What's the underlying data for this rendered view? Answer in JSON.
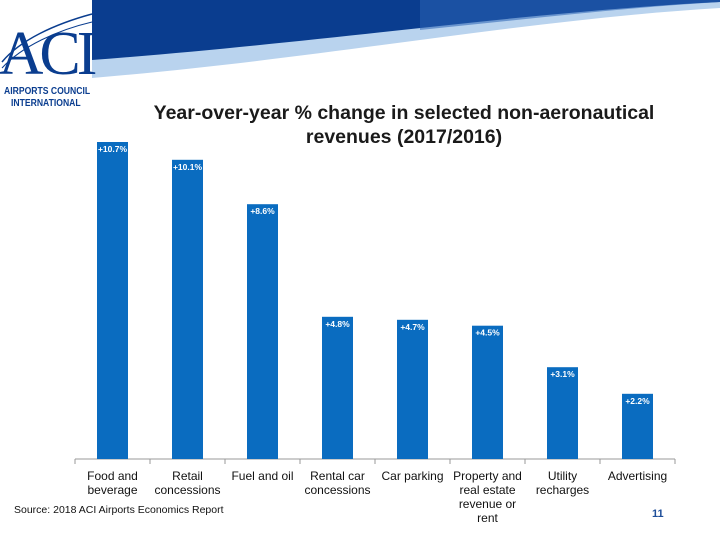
{
  "slide": {
    "title": "Year-over-year % change in selected non-aeronautical revenues (2017/2016)",
    "source": "Source: 2018 ACI Airports Economics Report",
    "page_number": "11"
  },
  "logo": {
    "mark": "ACI",
    "line1": "AIRPORTS COUNCIL",
    "line2": "INTERNATIONAL"
  },
  "colors": {
    "bar": "#0a6cc0",
    "brand_dark": "#0a3d8f",
    "brand_light": "#9cc3e8"
  },
  "chart_data": {
    "type": "bar",
    "title": "Year-over-year % change in selected non-aeronautical revenues (2017/2016)",
    "categories": [
      "Food and beverage",
      "Retail concessions",
      "Fuel and oil",
      "Rental car concessions",
      "Car parking",
      "Property and real estate revenue or rent",
      "Utility recharges",
      "Advertising"
    ],
    "values": [
      10.7,
      10.1,
      8.6,
      4.8,
      4.7,
      4.5,
      3.1,
      2.2
    ],
    "data_labels": [
      "+10.7%",
      "+10.1%",
      "+8.6%",
      "+4.8%",
      "+4.7%",
      "+4.5%",
      "+3.1%",
      "+2.2%"
    ],
    "category_label_lines": [
      [
        "Food and",
        "beverage"
      ],
      [
        "Retail",
        "concessions"
      ],
      [
        "Fuel and oil"
      ],
      [
        "Rental car",
        "concessions"
      ],
      [
        "Car parking"
      ],
      [
        "Property and",
        "real estate",
        "revenue or",
        "rent"
      ],
      [
        "Utility",
        "recharges"
      ],
      [
        "Advertising"
      ]
    ],
    "ylim": [
      0,
      10.7
    ],
    "grid": false,
    "xlabel": "",
    "ylabel": ""
  }
}
